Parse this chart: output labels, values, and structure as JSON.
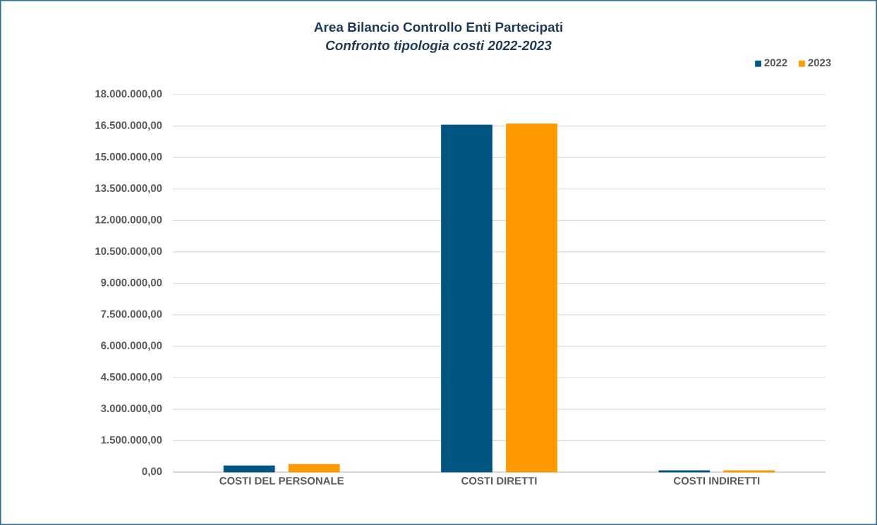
{
  "chart_data": {
    "type": "bar",
    "title": "Area Bilancio Controllo Enti Partecipati",
    "subtitle": "Confronto tipologia costi 2022-2023",
    "categories": [
      "COSTI DEL PERSONALE",
      "COSTI DIRETTI",
      "COSTI INDIRETTI"
    ],
    "series": [
      {
        "name": "2022",
        "color": "#005581",
        "values": [
          300000,
          16550000,
          70000
        ]
      },
      {
        "name": "2023",
        "color": "#ff9900",
        "values": [
          370000,
          16600000,
          70000
        ]
      }
    ],
    "ylim": [
      0,
      18000000
    ],
    "yticks": [
      {
        "value": 0,
        "label": "0,00"
      },
      {
        "value": 1500000,
        "label": "1.500.000,00"
      },
      {
        "value": 3000000,
        "label": "3.000.000,00"
      },
      {
        "value": 4500000,
        "label": "4.500.000,00"
      },
      {
        "value": 6000000,
        "label": "6.000.000,00"
      },
      {
        "value": 7500000,
        "label": "7.500.000,00"
      },
      {
        "value": 9000000,
        "label": "9.000.000,00"
      },
      {
        "value": 10500000,
        "label": "10.500.000,00"
      },
      {
        "value": 12000000,
        "label": "12.000.000,00"
      },
      {
        "value": 13500000,
        "label": "13.500.000,00"
      },
      {
        "value": 15000000,
        "label": "15.000.000,00"
      },
      {
        "value": 16500000,
        "label": "16.500.000,00"
      },
      {
        "value": 18000000,
        "label": "18.000.000,00"
      }
    ],
    "grid": "y",
    "legend": "top right"
  }
}
